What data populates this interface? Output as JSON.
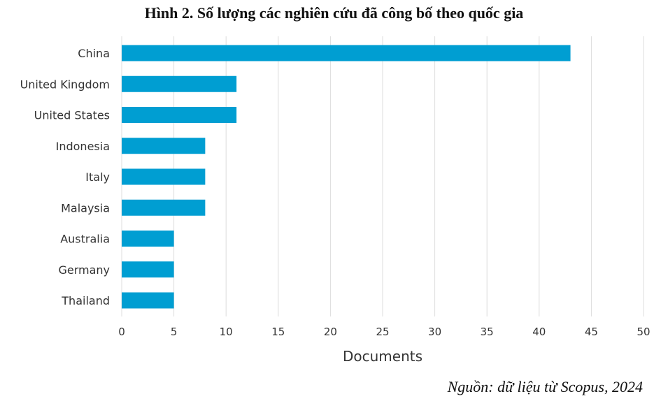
{
  "header": {
    "title": "Hình 2. Số lượng các nghiên cứu đã công bố theo quốc gia"
  },
  "footer": {
    "source": "Nguồn: dữ liệu từ Scopus, 2024"
  },
  "colors": {
    "bar": "#009ED2",
    "grid": "#DCDCDC",
    "text": "#333333"
  },
  "chart_data": {
    "type": "bar",
    "orientation": "horizontal",
    "title": "Hình 2. Số lượng các nghiên cứu đã công bố theo quốc gia",
    "xlabel": "Documents",
    "ylabel": "",
    "categories": [
      "China",
      "United Kingdom",
      "United States",
      "Indonesia",
      "Italy",
      "Malaysia",
      "Australia",
      "Germany",
      "Thailand"
    ],
    "values": [
      43,
      11,
      11,
      8,
      8,
      8,
      5,
      5,
      5
    ],
    "xlim": [
      0,
      50
    ],
    "xticks": [
      "0",
      "5",
      "10",
      "15",
      "20",
      "25",
      "30",
      "35",
      "40",
      "45",
      "50"
    ],
    "grid": "vertical",
    "legend": "none"
  }
}
